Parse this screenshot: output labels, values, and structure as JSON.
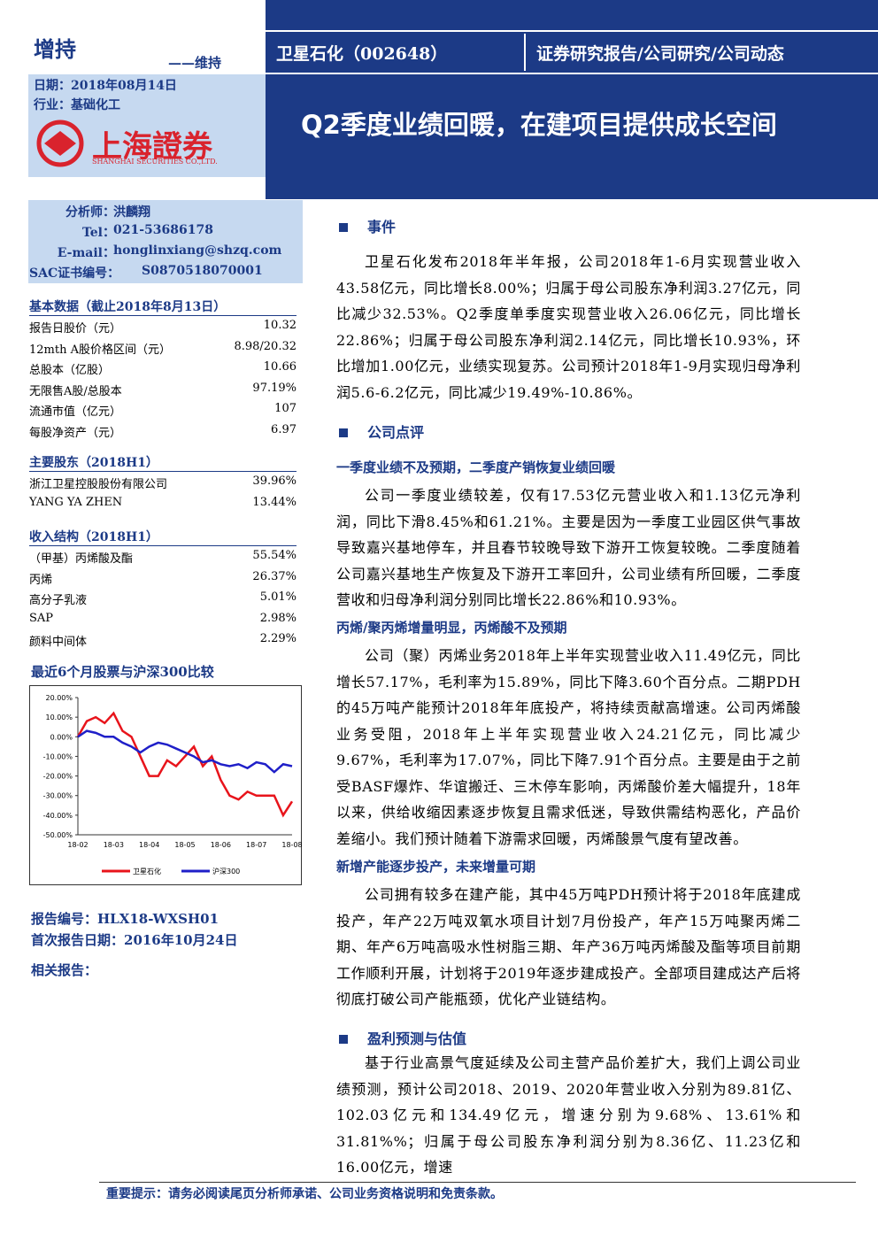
{
  "header": {
    "rating": "增持",
    "rating_change": "——维持",
    "date": "日期：2018年08月14日",
    "industry": "行业：基础化工",
    "company": "卫星石化（002648）",
    "report_type": "证券研究报告/公司研究/公司动态",
    "title": "Q2季度业绩回暖，在建项目提供成长空间",
    "logo_cn": "上海證券",
    "logo_en": "SHANGHAI SECURITIES CO.,LTD."
  },
  "analyst": {
    "rows": [
      [
        "分析师：",
        "洪麟翔"
      ],
      [
        "Tel：",
        "021-53686178"
      ],
      [
        "E-mail：",
        "honglinxiang@shzq.com"
      ],
      [
        "SAC证书编号：",
        "S0870518070001"
      ]
    ]
  },
  "basic_data": {
    "title": "基本数据（截止2018年8月13日）",
    "rows": [
      [
        "报告日股价（元）",
        "10.32"
      ],
      [
        "12mth A股价格区间（元）",
        "8.98/20.32"
      ],
      [
        "总股本（亿股）",
        "10.66"
      ],
      [
        "无限售A股/总股本",
        "97.19%"
      ],
      [
        "流通市值（亿元）",
        "107"
      ],
      [
        "每股净资产（元）",
        "6.97"
      ]
    ]
  },
  "shareholders": {
    "title": "主要股东（2018H1）",
    "rows": [
      [
        "浙江卫星控股股份有限公司",
        "39.96%"
      ],
      [
        "YANG YA ZHEN",
        "13.44%"
      ]
    ]
  },
  "revenue": {
    "title": "收入结构（2018H1）",
    "rows": [
      [
        "（甲基）丙烯酸及酯",
        "55.54%"
      ],
      [
        "丙烯",
        "26.37%"
      ],
      [
        "高分子乳液",
        "5.01%"
      ],
      [
        "SAP",
        "2.98%"
      ],
      [
        "颜料中间体",
        "2.29%"
      ]
    ]
  },
  "chart_data": {
    "type": "line",
    "title": "最近6个月股票与沪深300比较",
    "categories": [
      "18-02",
      null,
      null,
      null,
      "18-03",
      null,
      null,
      null,
      "18-04",
      null,
      null,
      null,
      "18-05",
      null,
      null,
      null,
      "18-06",
      null,
      null,
      null,
      "18-07",
      null,
      null,
      null,
      "18-08"
    ],
    "series": [
      {
        "name": "卫星石化",
        "color": "#e8141b",
        "values": [
          0,
          8,
          10,
          7,
          12,
          3,
          0,
          -10,
          -20,
          -20,
          -12,
          -15,
          -10,
          -5,
          -15,
          -10,
          -22,
          -30,
          -32,
          -28,
          -30,
          -30,
          -30,
          -40,
          -33
        ]
      },
      {
        "name": "沪深300",
        "color": "#1f1fc8",
        "values": [
          0,
          3,
          2,
          0,
          0,
          -3,
          -5,
          -8,
          -5,
          -3,
          -4,
          -6,
          -8,
          -10,
          -13,
          -12,
          -14,
          -15,
          -14,
          -16,
          -13,
          -14,
          -18,
          -14,
          -15
        ]
      }
    ],
    "ylim": [
      -50,
      20
    ],
    "yticks": [
      {
        "value": 20,
        "label": "20.00%"
      },
      {
        "value": 10,
        "label": "10.00%"
      },
      {
        "value": 0,
        "label": "0.00%"
      },
      {
        "value": -10,
        "label": "-10.00%"
      },
      {
        "value": -20,
        "label": "-20.00%"
      },
      {
        "value": -30,
        "label": "-30.00%"
      },
      {
        "value": -40,
        "label": "-40.00%"
      },
      {
        "value": -50,
        "label": "-50.00%"
      }
    ]
  },
  "report_info": {
    "number": "报告编号：HLX18-WXSH01",
    "first_date": "首次报告日期：2016年10月24日",
    "related": "相关报告："
  },
  "sections": [
    {
      "heading": "事件",
      "paragraphs": [
        "卫星石化发布2018年半年报，公司2018年1-6月实现营业收入43.58亿元，同比增长8.00%；归属于母公司股东净利润3.27亿元，同比减少32.53%。Q2季度单季度实现营业收入26.06亿元，同比增长22.86%；归属于母公司股东净利润2.14亿元，同比增长10.93%，环比增加1.00亿元，业绩实现复苏。公司预计2018年1-9月实现归母净利润5.6-6.2亿元，同比减少19.49%-10.86%。"
      ]
    },
    {
      "heading": "公司点评",
      "subsections": [
        {
          "subheading": "一季度业绩不及预期，二季度产销恢复业绩回暖",
          "paragraph": "公司一季度业绩较差，仅有17.53亿元营业收入和1.13亿元净利润，同比下滑8.45%和61.21%。主要是因为一季度工业园区供气事故导致嘉兴基地停车，并且春节较晚导致下游开工恢复较晚。二季度随着公司嘉兴基地生产恢复及下游开工率回升，公司业绩有所回暖，二季度营收和归母净利润分别同比增长22.86%和10.93%。"
        },
        {
          "subheading": "丙烯/聚丙烯增量明显，丙烯酸不及预期",
          "paragraph": "公司（聚）丙烯业务2018年上半年实现营业收入11.49亿元，同比增长57.17%，毛利率为15.89%，同比下降3.60个百分点。二期PDH的45万吨产能预计2018年年底投产，将持续贡献高增速。公司丙烯酸业务受阻，2018年上半年实现营业收入24.21亿元，同比减少9.67%，毛利率为17.07%，同比下降7.91个百分点。主要是由于之前受BASF爆炸、华谊搬迁、三木停车影响，丙烯酸价差大幅提升，18年以来，供给收缩因素逐步恢复且需求低迷，导致供需结构恶化，产品价差缩小。我们预计随着下游需求回暖，丙烯酸景气度有望改善。"
        },
        {
          "subheading": "新增产能逐步投产，未来增量可期",
          "paragraph": "公司拥有较多在建产能，其中45万吨PDH预计将于2018年底建成投产，年产22万吨双氧水项目计划7月份投产，年产15万吨聚丙烯二期、年产6万吨高吸水性树脂三期、年产36万吨丙烯酸及酯等项目前期工作顺利开展，计划将于2019年逐步建成投产。全部项目建成达产后将彻底打破公司产能瓶颈，优化产业链结构。"
        }
      ]
    },
    {
      "heading": "盈利预测与估值",
      "paragraphs": [
        "基于行业高景气度延续及公司主营产品价差扩大，我们上调公司业绩预测，预计公司2018、2019、2020年营业收入分别为89.81亿、102.03亿元和134.49亿元，增速分别为9.68%、13.61%和31.81%%；归属于母公司股东净利润分别为8.36亿、11.23亿和16.00亿元，增速"
      ]
    }
  ],
  "footer": "重要提示：请务必阅读尾页分析师承诺、公司业务资格说明和免责条款。"
}
